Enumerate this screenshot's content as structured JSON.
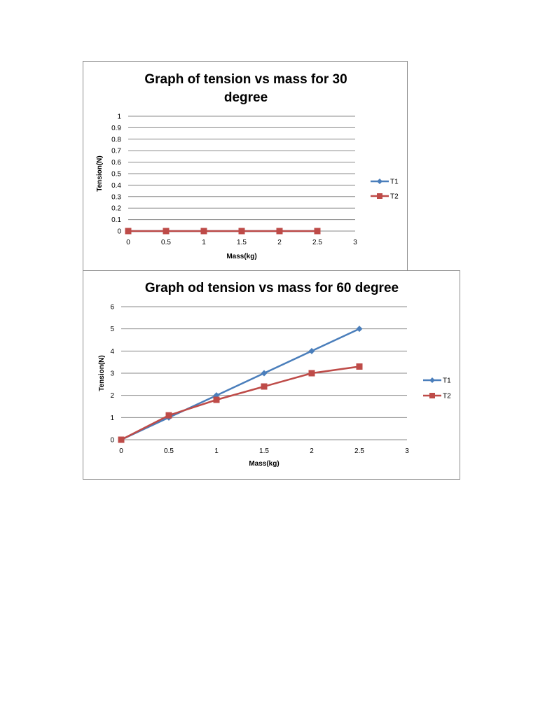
{
  "colors": {
    "t1": "#4a7ebb",
    "t2": "#be4b48",
    "grid": "#8a8a8a"
  },
  "chart_data": [
    {
      "type": "line",
      "title_lines": [
        "Graph of tension vs mass for 30",
        "degree"
      ],
      "xlabel": "Mass(kg)",
      "ylabel": "Tension(N)",
      "xlim": [
        0,
        3
      ],
      "ylim": [
        0,
        1
      ],
      "x_ticks": [
        "0",
        "0.5",
        "1",
        "1.5",
        "2",
        "2.5",
        "3"
      ],
      "y_ticks": [
        "0",
        "0.1",
        "0.2",
        "0.3",
        "0.4",
        "0.5",
        "0.6",
        "0.7",
        "0.8",
        "0.9",
        "1"
      ],
      "grid": true,
      "legend_position": "right",
      "series": [
        {
          "name": "T1",
          "marker": "diamond",
          "color": "#4a7ebb",
          "x": [
            0,
            0.5,
            1,
            1.5,
            2,
            2.5
          ],
          "y": [
            0,
            0,
            0,
            0,
            0,
            0
          ]
        },
        {
          "name": "T2",
          "marker": "square",
          "color": "#be4b48",
          "x": [
            0,
            0.5,
            1,
            1.5,
            2,
            2.5
          ],
          "y": [
            0,
            0,
            0,
            0,
            0,
            0
          ]
        }
      ]
    },
    {
      "type": "line",
      "title_lines": [
        "Graph od tension vs mass for 60 degree"
      ],
      "xlabel": "Mass(kg)",
      "ylabel": "Tension(N)",
      "xlim": [
        0,
        3
      ],
      "ylim": [
        0,
        6
      ],
      "x_ticks": [
        "0",
        "0.5",
        "1",
        "1.5",
        "2",
        "2.5",
        "3"
      ],
      "y_ticks": [
        "0",
        "1",
        "2",
        "3",
        "4",
        "5",
        "6"
      ],
      "grid": true,
      "legend_position": "right",
      "series": [
        {
          "name": "T1",
          "marker": "diamond",
          "color": "#4a7ebb",
          "x": [
            0,
            0.5,
            1,
            1.5,
            2,
            2.5
          ],
          "y": [
            0,
            1,
            2,
            3,
            4,
            5
          ]
        },
        {
          "name": "T2",
          "marker": "square",
          "color": "#be4b48",
          "x": [
            0,
            0.5,
            1,
            1.5,
            2,
            2.5
          ],
          "y": [
            0,
            1.1,
            1.8,
            2.4,
            3,
            3.3
          ]
        }
      ]
    }
  ]
}
